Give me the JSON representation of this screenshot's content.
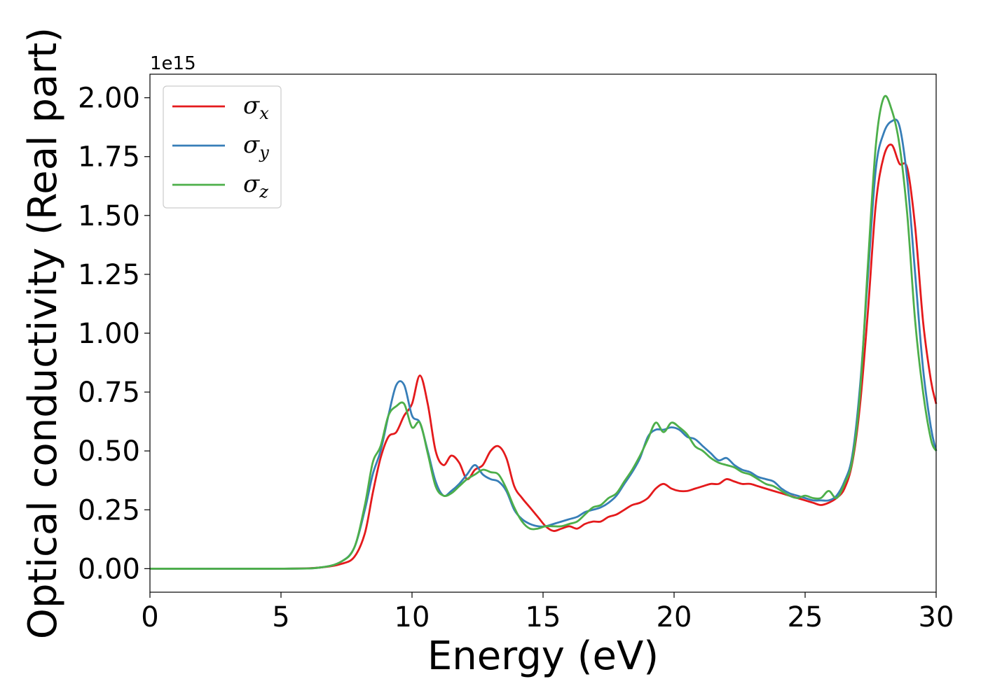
{
  "chart_data": {
    "type": "line",
    "xlabel": "Energy (eV)",
    "ylabel": "Optical conductivity (Real part)",
    "y_offset_label": "1e15",
    "xlim": [
      0,
      30
    ],
    "ylim": [
      -0.1,
      2.1
    ],
    "x_ticks": [
      0,
      5,
      10,
      15,
      20,
      25,
      30
    ],
    "x_tick_labels": [
      "0",
      "5",
      "10",
      "15",
      "20",
      "25",
      "30"
    ],
    "y_ticks": [
      0,
      0.25,
      0.5,
      0.75,
      1.0,
      1.25,
      1.5,
      1.75,
      2.0
    ],
    "y_tick_labels": [
      "0.00",
      "0.25",
      "0.50",
      "0.75",
      "1.00",
      "1.25",
      "1.50",
      "1.75",
      "2.00"
    ],
    "grid": false,
    "legend_position": "top-left",
    "series": [
      {
        "name": "σ",
        "subscript": "x",
        "color": "#e41a1c",
        "x": [
          0,
          5,
          6.5,
          7.3,
          7.8,
          8.2,
          8.5,
          8.8,
          9.1,
          9.4,
          9.7,
          10.0,
          10.3,
          10.6,
          10.9,
          11.2,
          11.5,
          11.8,
          12.1,
          12.4,
          12.7,
          13.0,
          13.3,
          13.6,
          13.9,
          14.2,
          14.5,
          14.8,
          15.1,
          15.4,
          15.7,
          16.0,
          16.3,
          16.6,
          16.9,
          17.2,
          17.5,
          17.8,
          18.1,
          18.4,
          18.7,
          19.0,
          19.3,
          19.6,
          19.9,
          20.2,
          20.5,
          20.8,
          21.1,
          21.4,
          21.7,
          22.0,
          22.3,
          22.6,
          22.9,
          23.2,
          23.5,
          23.8,
          24.1,
          24.4,
          24.7,
          25.0,
          25.3,
          25.6,
          25.9,
          26.2,
          26.5,
          26.8,
          27.1,
          27.4,
          27.7,
          28.0,
          28.3,
          28.6,
          28.9,
          29.2,
          29.5,
          29.8,
          30.0
        ],
        "y": [
          0.0,
          0.0,
          0.005,
          0.02,
          0.05,
          0.15,
          0.32,
          0.47,
          0.56,
          0.58,
          0.65,
          0.7,
          0.82,
          0.7,
          0.5,
          0.44,
          0.48,
          0.45,
          0.38,
          0.42,
          0.44,
          0.5,
          0.52,
          0.47,
          0.35,
          0.3,
          0.26,
          0.22,
          0.18,
          0.16,
          0.17,
          0.18,
          0.17,
          0.19,
          0.2,
          0.2,
          0.22,
          0.23,
          0.25,
          0.27,
          0.28,
          0.3,
          0.34,
          0.36,
          0.34,
          0.33,
          0.33,
          0.34,
          0.35,
          0.36,
          0.36,
          0.38,
          0.37,
          0.36,
          0.36,
          0.35,
          0.34,
          0.33,
          0.32,
          0.31,
          0.3,
          0.29,
          0.28,
          0.27,
          0.28,
          0.3,
          0.34,
          0.45,
          0.7,
          1.1,
          1.55,
          1.75,
          1.8,
          1.72,
          1.7,
          1.45,
          1.05,
          0.8,
          0.7
        ]
      },
      {
        "name": "σ",
        "subscript": "y",
        "color": "#377eb8",
        "x": [
          0,
          5,
          6.5,
          7.3,
          7.8,
          8.2,
          8.5,
          8.8,
          9.1,
          9.4,
          9.7,
          10.0,
          10.3,
          10.6,
          10.9,
          11.2,
          11.5,
          11.8,
          12.1,
          12.4,
          12.7,
          13.0,
          13.3,
          13.6,
          13.9,
          14.2,
          14.5,
          14.8,
          15.1,
          15.4,
          15.7,
          16.0,
          16.3,
          16.6,
          16.9,
          17.2,
          17.5,
          17.8,
          18.1,
          18.4,
          18.7,
          19.0,
          19.3,
          19.6,
          19.9,
          20.2,
          20.5,
          20.8,
          21.1,
          21.4,
          21.7,
          22.0,
          22.3,
          22.6,
          22.9,
          23.2,
          23.5,
          23.8,
          24.1,
          24.4,
          24.7,
          25.0,
          25.3,
          25.6,
          25.9,
          26.2,
          26.5,
          26.8,
          27.1,
          27.4,
          27.7,
          28.0,
          28.3,
          28.6,
          28.9,
          29.2,
          29.5,
          29.8,
          30.0
        ],
        "y": [
          0.0,
          0.0,
          0.005,
          0.03,
          0.09,
          0.25,
          0.4,
          0.5,
          0.65,
          0.78,
          0.78,
          0.65,
          0.62,
          0.5,
          0.37,
          0.31,
          0.33,
          0.36,
          0.4,
          0.44,
          0.4,
          0.38,
          0.37,
          0.33,
          0.25,
          0.21,
          0.19,
          0.18,
          0.18,
          0.19,
          0.2,
          0.21,
          0.22,
          0.24,
          0.25,
          0.26,
          0.28,
          0.31,
          0.36,
          0.41,
          0.47,
          0.56,
          0.59,
          0.59,
          0.6,
          0.59,
          0.56,
          0.55,
          0.52,
          0.49,
          0.46,
          0.47,
          0.44,
          0.42,
          0.41,
          0.39,
          0.38,
          0.37,
          0.34,
          0.32,
          0.31,
          0.3,
          0.29,
          0.29,
          0.29,
          0.31,
          0.37,
          0.48,
          0.78,
          1.25,
          1.7,
          1.85,
          1.9,
          1.88,
          1.65,
          1.25,
          0.85,
          0.6,
          0.5
        ]
      },
      {
        "name": "σ",
        "subscript": "z",
        "color": "#4daf4a",
        "x": [
          0,
          5,
          6.5,
          7.3,
          7.8,
          8.2,
          8.5,
          8.8,
          9.1,
          9.4,
          9.7,
          10.0,
          10.3,
          10.6,
          10.9,
          11.2,
          11.5,
          11.8,
          12.1,
          12.4,
          12.7,
          13.0,
          13.3,
          13.6,
          13.9,
          14.2,
          14.5,
          14.8,
          15.1,
          15.4,
          15.7,
          16.0,
          16.3,
          16.6,
          16.9,
          17.2,
          17.5,
          17.8,
          18.1,
          18.4,
          18.7,
          19.0,
          19.3,
          19.6,
          19.9,
          20.2,
          20.5,
          20.8,
          21.1,
          21.4,
          21.7,
          22.0,
          22.3,
          22.6,
          22.9,
          23.2,
          23.5,
          23.8,
          24.1,
          24.4,
          24.7,
          25.0,
          25.3,
          25.6,
          25.9,
          26.2,
          26.5,
          26.8,
          27.1,
          27.4,
          27.7,
          28.0,
          28.3,
          28.6,
          28.9,
          29.2,
          29.5,
          29.8,
          30.0
        ],
        "y": [
          0.0,
          0.0,
          0.005,
          0.03,
          0.09,
          0.27,
          0.45,
          0.52,
          0.65,
          0.69,
          0.7,
          0.6,
          0.62,
          0.49,
          0.35,
          0.31,
          0.32,
          0.35,
          0.38,
          0.4,
          0.42,
          0.41,
          0.4,
          0.34,
          0.26,
          0.2,
          0.17,
          0.17,
          0.18,
          0.18,
          0.18,
          0.19,
          0.2,
          0.23,
          0.26,
          0.27,
          0.3,
          0.32,
          0.37,
          0.42,
          0.48,
          0.55,
          0.62,
          0.58,
          0.62,
          0.6,
          0.57,
          0.52,
          0.5,
          0.47,
          0.45,
          0.44,
          0.43,
          0.41,
          0.4,
          0.38,
          0.36,
          0.35,
          0.33,
          0.31,
          0.3,
          0.31,
          0.3,
          0.3,
          0.33,
          0.3,
          0.36,
          0.46,
          0.75,
          1.3,
          1.8,
          2.0,
          1.95,
          1.8,
          1.5,
          1.05,
          0.75,
          0.55,
          0.5
        ]
      }
    ]
  }
}
